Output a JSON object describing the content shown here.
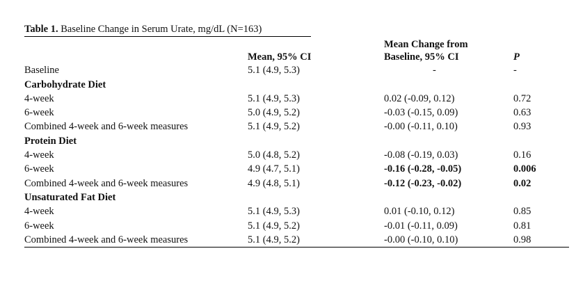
{
  "caption": {
    "label": "Table 1.",
    "title": " Baseline Change in Serum Urate, mg/dL (N=163)"
  },
  "headers": {
    "col2": "Mean, 95% CI",
    "col3_line1": "Mean Change from",
    "col3_line2": "Baseline, 95% CI",
    "col4": "P"
  },
  "rows": [
    {
      "label": "Baseline",
      "mean": "5.1 (4.9, 5.3)",
      "change": "-",
      "p": "-"
    },
    {
      "label": "Carbohydrate Diet"
    },
    {
      "label": "4-week",
      "mean": "5.1 (4.9, 5.3)",
      "change": "0.02 (-0.09, 0.12)",
      "p": "0.72"
    },
    {
      "label": "6-week",
      "mean": "5.0 (4.9, 5.2)",
      "change": "-0.03 (-0.15, 0.09)",
      "p": "0.63"
    },
    {
      "label": "Combined 4-week and 6-week measures",
      "mean": "5.1 (4.9, 5.2)",
      "change": "-0.00 (-0.11, 0.10)",
      "p": "0.93"
    },
    {
      "label": "Protein Diet"
    },
    {
      "label": "4-week",
      "mean": "5.0 (4.8, 5.2)",
      "change": "-0.08 (-0.19, 0.03)",
      "p": "0.16"
    },
    {
      "label": "6-week",
      "mean": "4.9 (4.7, 5.1)",
      "change": "-0.16 (-0.28, -0.05)",
      "p": "0.006"
    },
    {
      "label": "Combined 4-week and 6-week measures",
      "mean": "4.9 (4.8, 5.1)",
      "change": "-0.12 (-0.23, -0.02)",
      "p": "0.02"
    },
    {
      "label": "Unsaturated Fat Diet"
    },
    {
      "label": "4-week",
      "mean": "5.1 (4.9, 5.3)",
      "change": "0.01 (-0.10, 0.12)",
      "p": "0.85"
    },
    {
      "label": "6-week",
      "mean": "5.1 (4.9, 5.2)",
      "change": "-0.01 (-0.11, 0.09)",
      "p": "0.81"
    },
    {
      "label": "Combined 4-week and 6-week measures",
      "mean": "5.1 (4.9, 5.2)",
      "change": "-0.00 (-0.10, 0.10)",
      "p": "0.98"
    }
  ]
}
